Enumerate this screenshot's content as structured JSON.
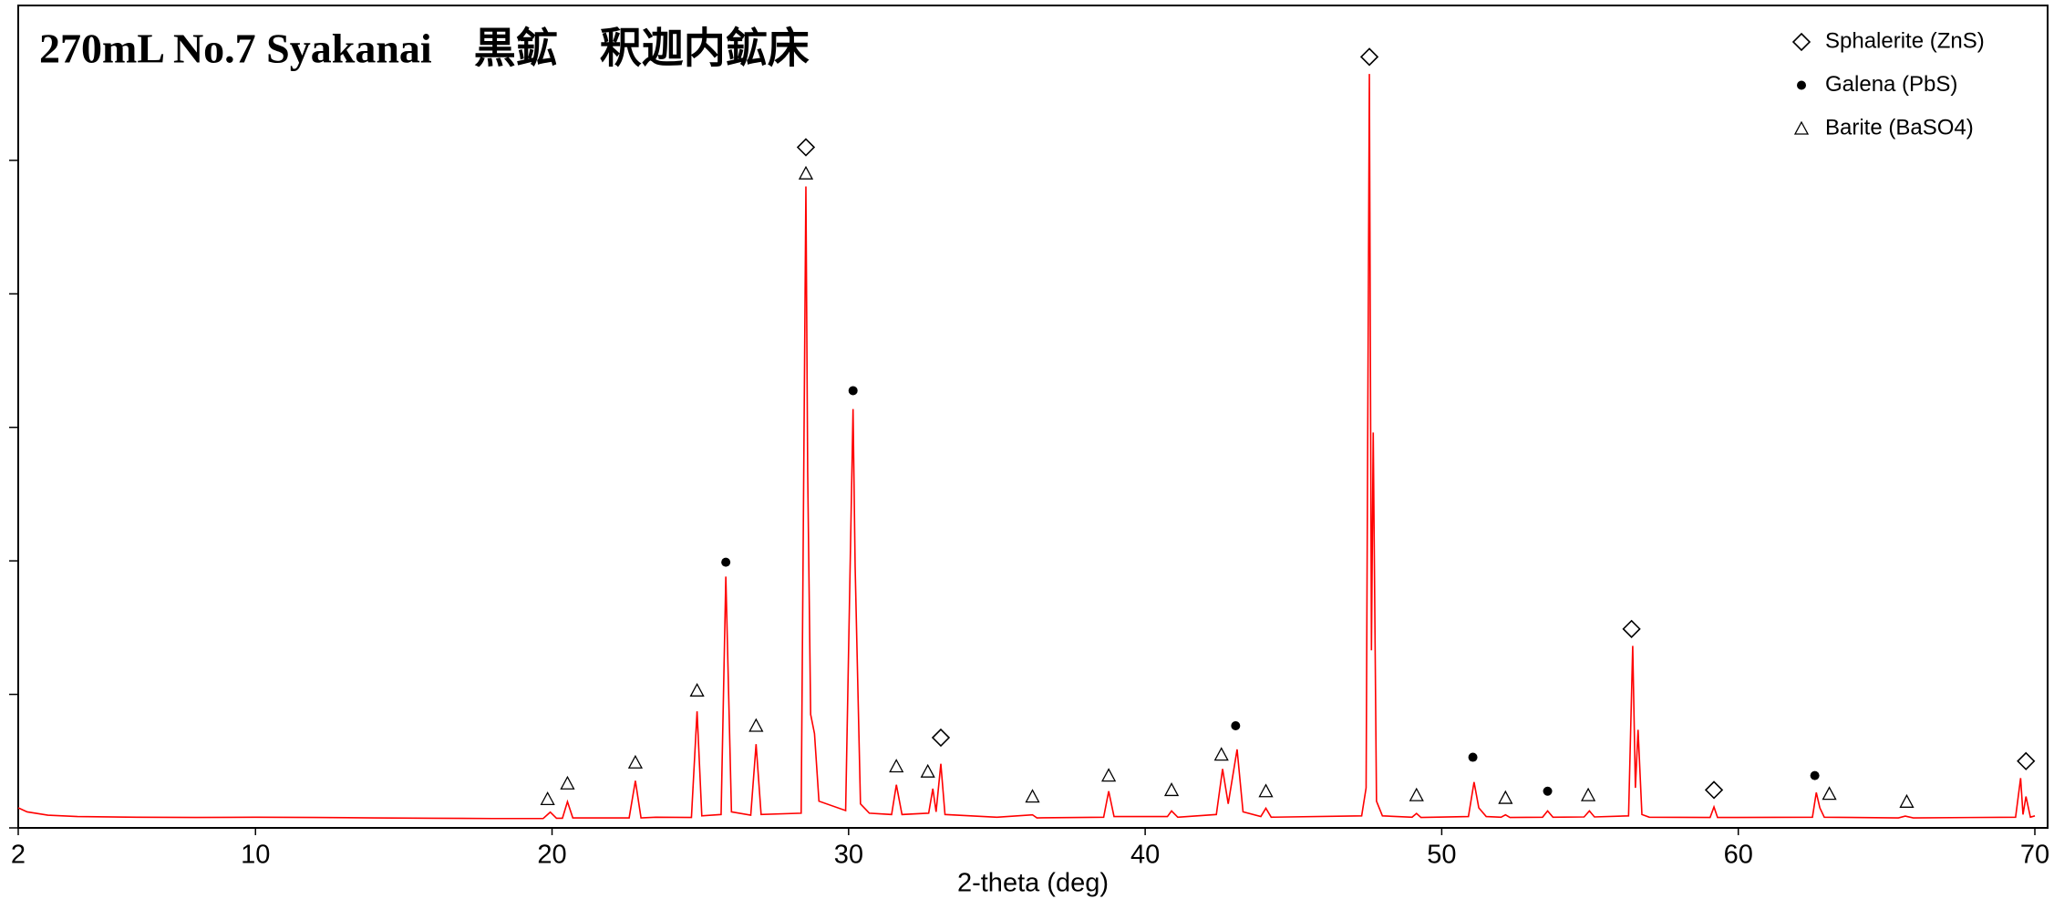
{
  "chart_data": {
    "type": "line",
    "title": "270mL No.7 Syakanai　黒鉱　釈迦内鉱床",
    "xlabel": "2-theta (deg)",
    "xlim": [
      2,
      70
    ],
    "xticks": [
      2,
      10,
      20,
      30,
      40,
      50,
      60,
      70
    ],
    "ylim": [
      0,
      6160
    ],
    "yticks": [
      0,
      1000,
      2000,
      3000,
      4000,
      5000
    ],
    "legend": "upper right",
    "series": [
      {
        "color": "#ff0000",
        "x": [
          2,
          2.3,
          3,
          4,
          6,
          8,
          10,
          12,
          14,
          16,
          18,
          19.7,
          19.94,
          20.15,
          20.35,
          20.52,
          20.7,
          22.6,
          22.81,
          23.0,
          23.5,
          24.7,
          24.89,
          25.05,
          25.7,
          25.86,
          26.05,
          26.7,
          26.88,
          27.05,
          28.4,
          28.56,
          28.62,
          28.72,
          28.85,
          29.0,
          29.9,
          30.15,
          30.22,
          30.4,
          30.7,
          31.45,
          31.61,
          31.8,
          32.7,
          32.84,
          32.95,
          33.11,
          33.25,
          35.0,
          36.2,
          36.35,
          38.6,
          38.77,
          38.95,
          40.75,
          40.89,
          41.1,
          42.4,
          42.61,
          42.8,
          43.1,
          43.3,
          43.9,
          44.07,
          44.25,
          47.3,
          47.45,
          47.56,
          47.63,
          47.69,
          47.8,
          48.0,
          49.0,
          49.15,
          49.3,
          50.9,
          51.09,
          51.25,
          51.5,
          52.0,
          52.15,
          52.3,
          53.4,
          53.57,
          53.75,
          54.8,
          54.98,
          55.15,
          56.3,
          56.44,
          56.53,
          56.62,
          56.75,
          57.0,
          59.05,
          59.18,
          59.3,
          62.5,
          62.63,
          62.75,
          62.9,
          65.4,
          65.63,
          65.9,
          69.35,
          69.52,
          69.6,
          69.7,
          69.85,
          70
        ],
        "values": [
          150,
          120,
          95,
          85,
          80,
          78,
          80,
          78,
          75,
          72,
          70,
          70,
          118,
          72,
          72,
          196,
          75,
          75,
          353,
          75,
          80,
          78,
          873,
          90,
          100,
          1882,
          120,
          95,
          627,
          100,
          110,
          4804,
          2667,
          850,
          706,
          200,
          130,
          3137,
          1960,
          180,
          110,
          100,
          323,
          100,
          110,
          294,
          120,
          480,
          100,
          80,
          98,
          75,
          80,
          275,
          85,
          85,
          127,
          80,
          100,
          441,
          180,
          588,
          120,
          85,
          147,
          80,
          90,
          300,
          5647,
          1330,
          2961,
          200,
          90,
          80,
          108,
          78,
          85,
          343,
          150,
          85,
          80,
          98,
          78,
          80,
          127,
          80,
          82,
          127,
          82,
          90,
          1363,
          300,
          735,
          100,
          80,
          78,
          157,
          78,
          80,
          265,
          150,
          80,
          75,
          88,
          75,
          80,
          373,
          100,
          235,
          80,
          90
        ]
      },
      {
        "name": "Sphalerite (ZnS)",
        "type": "scatter",
        "marker": "diamond",
        "color": "#000000",
        "x": [
          28.56,
          33.11,
          47.56,
          56.4,
          59.18,
          69.7
        ],
        "values": [
          5098,
          676,
          5775,
          1490,
          284,
          500
        ]
      },
      {
        "name": "Galena (PbS)",
        "type": "scatter",
        "marker": "dot",
        "color": "#000000",
        "x": [
          25.86,
          30.15,
          43.05,
          51.05,
          53.57,
          62.58
        ],
        "values": [
          1990,
          3275,
          765,
          529,
          275,
          392
        ]
      },
      {
        "name": "Barite (BaSO4)",
        "type": "scatter",
        "marker": "triangle",
        "color": "#000000",
        "x": [
          19.85,
          20.52,
          22.81,
          24.89,
          26.88,
          28.56,
          31.61,
          32.67,
          36.2,
          38.77,
          40.89,
          42.57,
          44.07,
          49.15,
          52.15,
          54.94,
          63.07,
          65.68
        ],
        "values": [
          216,
          333,
          490,
          1029,
          765,
          4902,
          461,
          422,
          235,
          392,
          284,
          549,
          275,
          245,
          225,
          245,
          255,
          196
        ]
      }
    ]
  }
}
